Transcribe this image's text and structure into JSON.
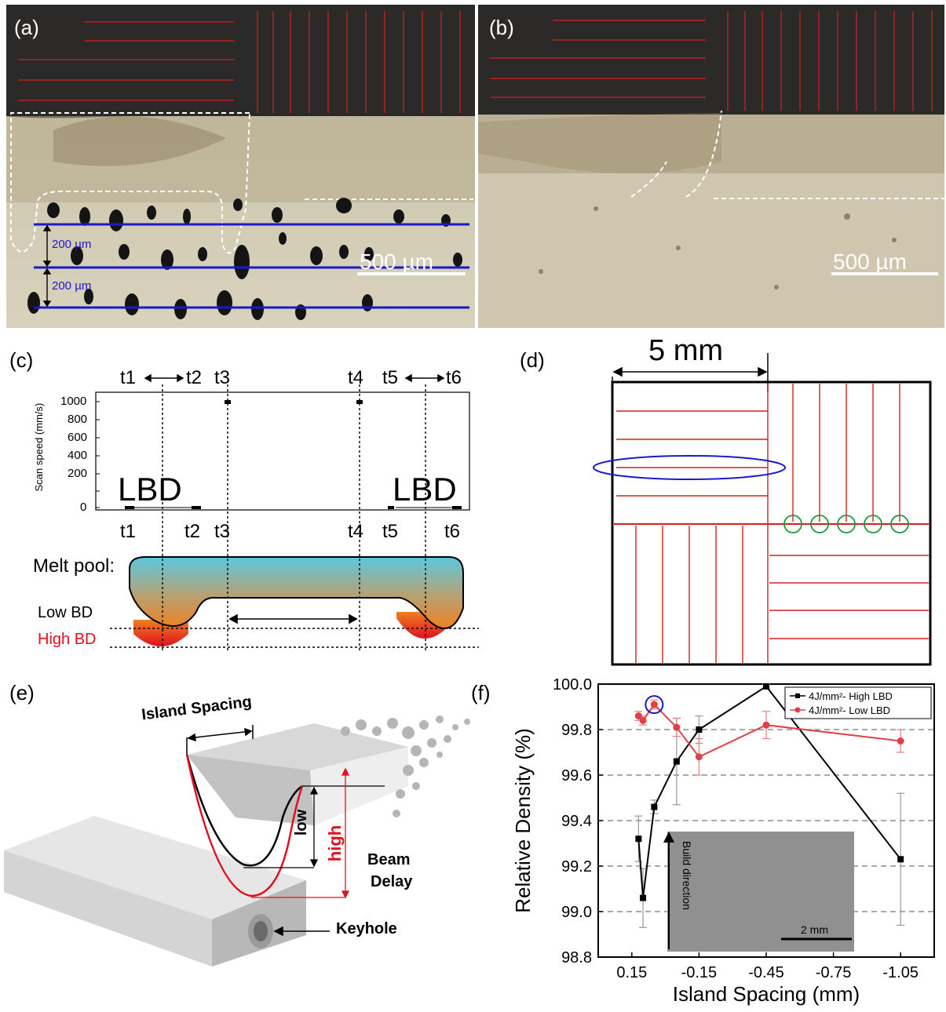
{
  "panels": {
    "a": {
      "label": "(a)",
      "scale": "500 µm",
      "dim1": "200 µm",
      "dim2": "200 µm"
    },
    "b": {
      "label": "(b)",
      "scale": "500 µm"
    },
    "c": {
      "label": "(c)",
      "ylabel": "Scan speed (mm/s)",
      "yticks": [
        "0",
        "200",
        "400",
        "600",
        "800",
        "1000"
      ],
      "times_top": [
        "t1",
        "t2",
        "t3",
        "t4",
        "t5",
        "t6"
      ],
      "times_bottom": [
        "t1",
        "t2",
        "t3",
        "t4",
        "t5",
        "t6"
      ],
      "lbd_left": "LBD",
      "lbd_right": "LBD",
      "melt_pool": "Melt pool:",
      "low_bd": "Low BD",
      "high_bd": "High BD"
    },
    "d": {
      "label": "(d)",
      "dimension": "5 mm"
    },
    "e": {
      "label": "(e)",
      "island_spacing": "Island Spacing",
      "low": "low",
      "high": "high",
      "beam": "Beam",
      "delay": "Delay",
      "keyhole": "Keyhole"
    },
    "f": {
      "label": "(f)",
      "inset_arrow": "Build direction",
      "inset_scale": "2 mm"
    }
  },
  "colors": {
    "red": "#d42020",
    "blue": "#1a1acc",
    "green": "#1a9a3a",
    "black_series": "#000000",
    "red_series": "#e0404a"
  },
  "chart_data": {
    "type": "line",
    "title": "",
    "xlabel": "Island Spacing (mm)",
    "ylabel": "Relative Density (%)",
    "xticks": [
      "0.15",
      "-0.15",
      "-0.45",
      "-0.75",
      "-1.05"
    ],
    "yticks": [
      "98.8",
      "99.0",
      "99.2",
      "99.4",
      "99.6",
      "99.8",
      "100.0"
    ],
    "xlim": [
      0.3,
      -1.2
    ],
    "ylim": [
      98.8,
      100.0
    ],
    "grid": "horizontal dashed",
    "legend": "top-right",
    "series": [
      {
        "name": "4J/mm²- High LBD",
        "color": "#000000",
        "marker": "square",
        "x": [
          0.12,
          0.1,
          0.05,
          -0.05,
          -0.15,
          -0.45,
          -1.05
        ],
        "y": [
          99.32,
          99.06,
          99.46,
          99.66,
          99.8,
          99.99,
          99.23
        ],
        "err": [
          0.1,
          0.13,
          0.03,
          0.19,
          0.06,
          0.01,
          0.29
        ]
      },
      {
        "name": "4J/mm²- Low LBD",
        "color": "#e0404a",
        "marker": "circle",
        "x": [
          0.12,
          0.1,
          0.05,
          -0.05,
          -0.15,
          -0.45,
          -1.05
        ],
        "y": [
          99.86,
          99.84,
          99.91,
          99.81,
          99.68,
          99.82,
          99.75
        ],
        "err": [
          0.02,
          0.02,
          0.02,
          0.04,
          0.08,
          0.06,
          0.05
        ]
      }
    ],
    "highlight_circle": {
      "series": 1,
      "index": 2,
      "color": "#1a1acc"
    }
  }
}
